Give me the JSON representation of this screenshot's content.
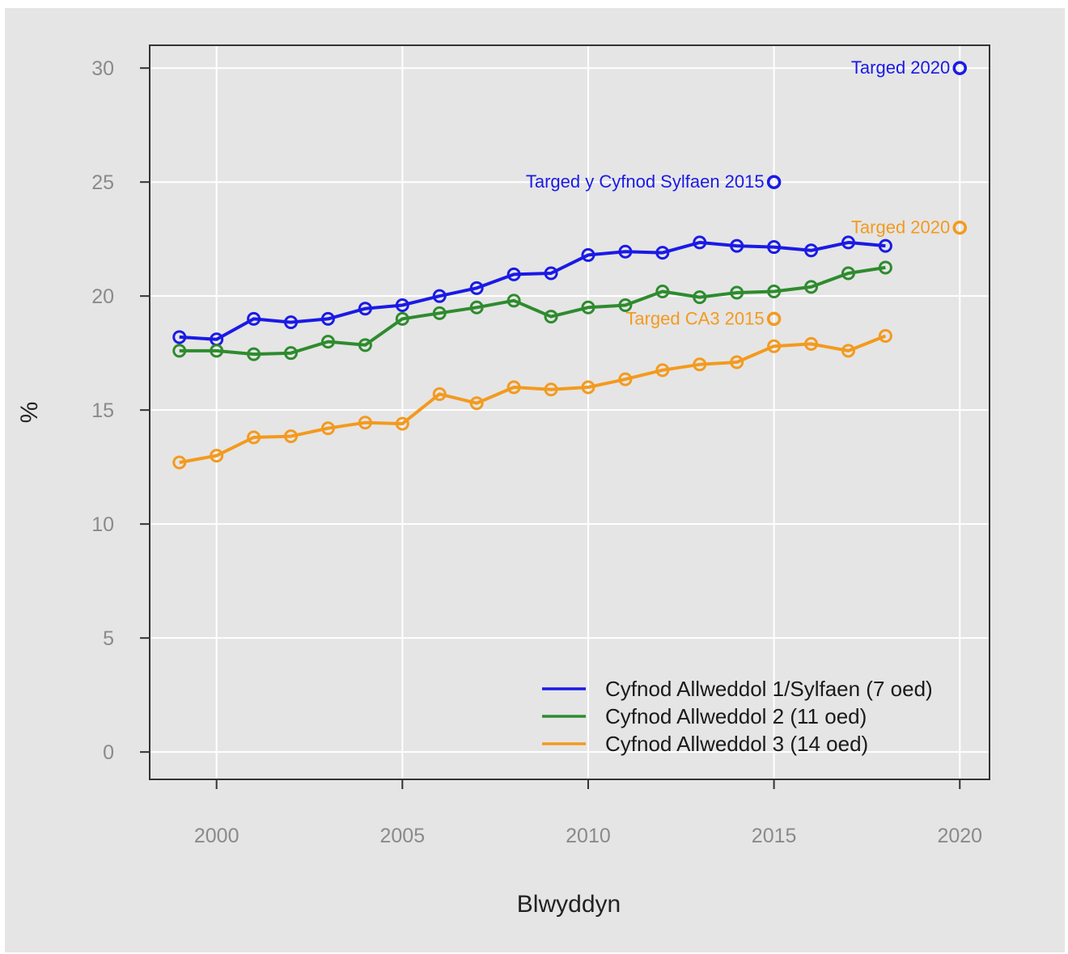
{
  "chart_data": {
    "type": "line",
    "title": "",
    "xlabel": "Blwyddyn",
    "ylabel": "%",
    "xlim": [
      1998.2,
      2020.8
    ],
    "ylim": [
      -1.2,
      31
    ],
    "xticks": [
      2000,
      2005,
      2010,
      2015,
      2020
    ],
    "yticks": [
      0,
      5,
      10,
      15,
      20,
      25,
      30
    ],
    "grid": true,
    "legend_position": "bottom-right",
    "x": [
      1999,
      2000,
      2001,
      2002,
      2003,
      2004,
      2005,
      2006,
      2007,
      2008,
      2009,
      2010,
      2011,
      2012,
      2013,
      2014,
      2015,
      2016,
      2017,
      2018
    ],
    "series": [
      {
        "name": "Cyfnod Allweddol 1/Sylfaen (7 oed)",
        "color": "#1a1ae6",
        "values": [
          18.2,
          18.1,
          19.0,
          18.85,
          19.0,
          19.45,
          19.6,
          20.0,
          20.35,
          20.95,
          21.0,
          21.8,
          21.95,
          21.9,
          22.35,
          22.2,
          22.15,
          22.0,
          22.35,
          22.2
        ]
      },
      {
        "name": "Cyfnod Allweddol 2 (11 oed)",
        "color": "#2e8b2e",
        "values": [
          17.6,
          17.6,
          17.45,
          17.5,
          18.0,
          17.85,
          19.0,
          19.25,
          19.5,
          19.8,
          19.1,
          19.5,
          19.6,
          20.2,
          19.95,
          20.15,
          20.2,
          20.4,
          21.0,
          21.25
        ]
      },
      {
        "name": "Cyfnod Allweddol 3 (14 oed)",
        "color": "#f39a1e",
        "values": [
          12.7,
          13.0,
          13.8,
          13.85,
          14.2,
          14.45,
          14.4,
          15.7,
          15.3,
          16.0,
          15.9,
          16.0,
          16.35,
          16.75,
          17.0,
          17.1,
          17.8,
          17.9,
          17.6,
          18.25
        ]
      }
    ],
    "targets": [
      {
        "label": "Targed 2020",
        "x": 2020,
        "y": 30,
        "color": "#1a1ae6"
      },
      {
        "label": "Targed y Cyfnod Sylfaen 2015",
        "x": 2015,
        "y": 25,
        "color": "#1a1ae6"
      },
      {
        "label": "Targed 2020",
        "x": 2020,
        "y": 23,
        "color": "#f39a1e"
      },
      {
        "label": "Targed CA3 2015",
        "x": 2015,
        "y": 19,
        "color": "#f39a1e"
      }
    ],
    "colors": {
      "background": "#e5e5e5",
      "grid": "#ffffff",
      "frame": "#333333"
    }
  }
}
